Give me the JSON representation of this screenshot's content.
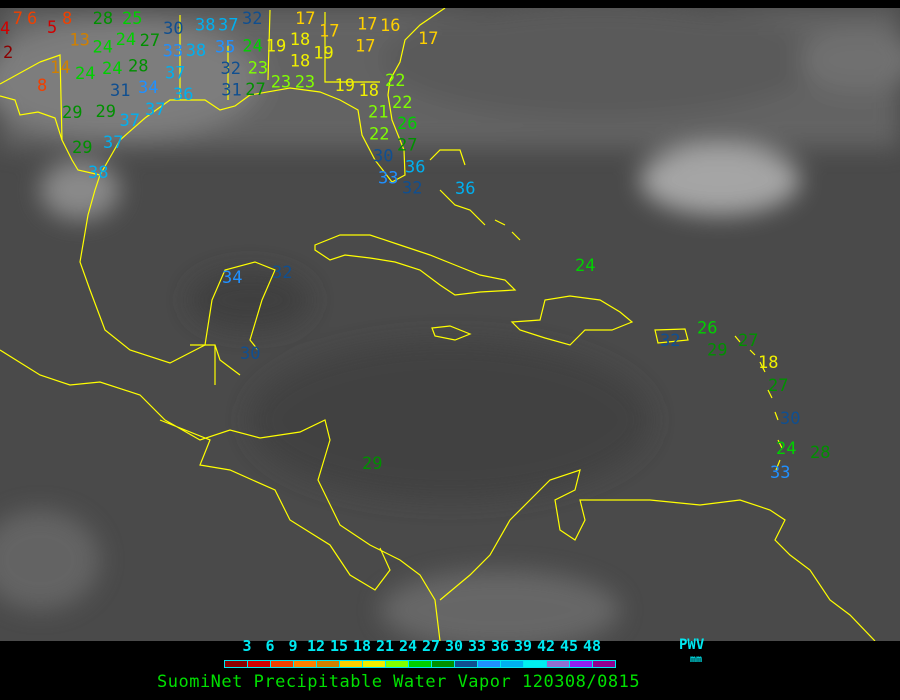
{
  "title": "SuomiNet Precipitable Water Vapor 120308/0815",
  "legend": {
    "unit_label": "PWV",
    "unit": "mm",
    "ticks": [
      "3",
      "6",
      "9",
      "12",
      "15",
      "18",
      "21",
      "24",
      "27",
      "30",
      "33",
      "36",
      "39",
      "42",
      "45",
      "48"
    ],
    "colors": [
      "#8b0000",
      "#d00000",
      "#f04000",
      "#ff8000",
      "#d08000",
      "#ffd000",
      "#f0f000",
      "#80ff00",
      "#00d000",
      "#009000",
      "#104f90",
      "#2090ff",
      "#00b0f0",
      "#00f0f0",
      "#9070d0",
      "#9020f0",
      "#900090"
    ]
  },
  "map": {
    "background": "#4a4a4a",
    "boundary_color": "#ffff00",
    "stations": [
      4,
      7,
      6,
      2,
      5,
      8,
      13,
      28,
      25,
      24,
      24,
      27,
      30,
      14,
      24,
      24,
      28,
      8,
      33,
      38,
      37,
      38,
      32,
      35,
      32,
      24,
      19,
      23,
      17,
      18,
      17,
      19,
      18,
      17,
      16,
      17,
      17,
      31,
      34,
      37,
      36,
      29,
      29,
      37,
      37,
      37,
      29,
      38,
      31,
      27,
      23,
      23,
      19,
      18,
      22,
      22,
      21,
      22,
      26,
      27,
      30,
      33,
      36,
      32,
      36,
      24,
      34,
      32,
      30,
      32,
      26,
      29,
      27,
      18,
      27,
      30,
      24,
      28,
      33,
      29
    ]
  }
}
